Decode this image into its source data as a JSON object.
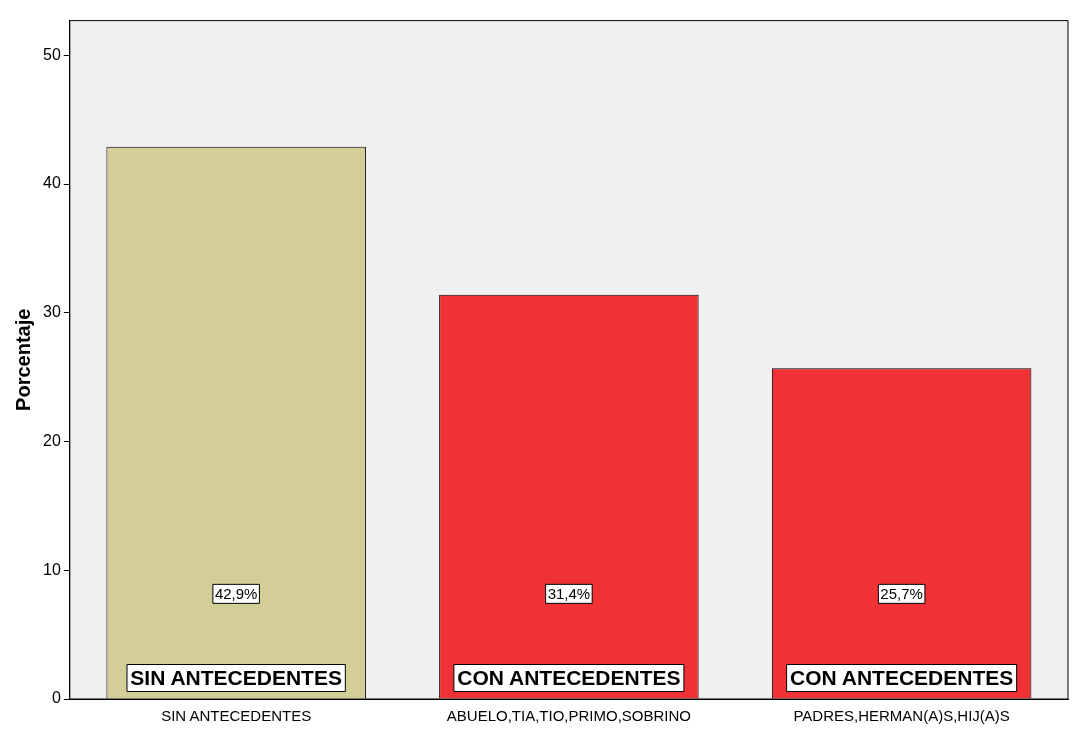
{
  "chart_data": {
    "type": "bar",
    "ylabel": "Porcentaje",
    "categories": [
      "SIN ANTECEDENTES",
      "ABUELO,TIA,TIO,PRIMO,SOBRINO",
      "PADRES,HERMAN(A)S,HIJ(A)S"
    ],
    "values": [
      42.9,
      31.4,
      25.7
    ],
    "colors": [
      "#d3cd98",
      "#f03237",
      "#f03237"
    ],
    "value_labels": [
      "42,9%",
      "31,4%",
      "25,7%"
    ],
    "ylim": [
      0,
      52.7
    ],
    "yticks": [
      0,
      10,
      20,
      30,
      40,
      50
    ],
    "grid": false,
    "legend": false,
    "annotations": [
      "SIN ANTECEDENTES",
      "CON ANTECEDENTES",
      "CON ANTECEDENTES"
    ]
  }
}
